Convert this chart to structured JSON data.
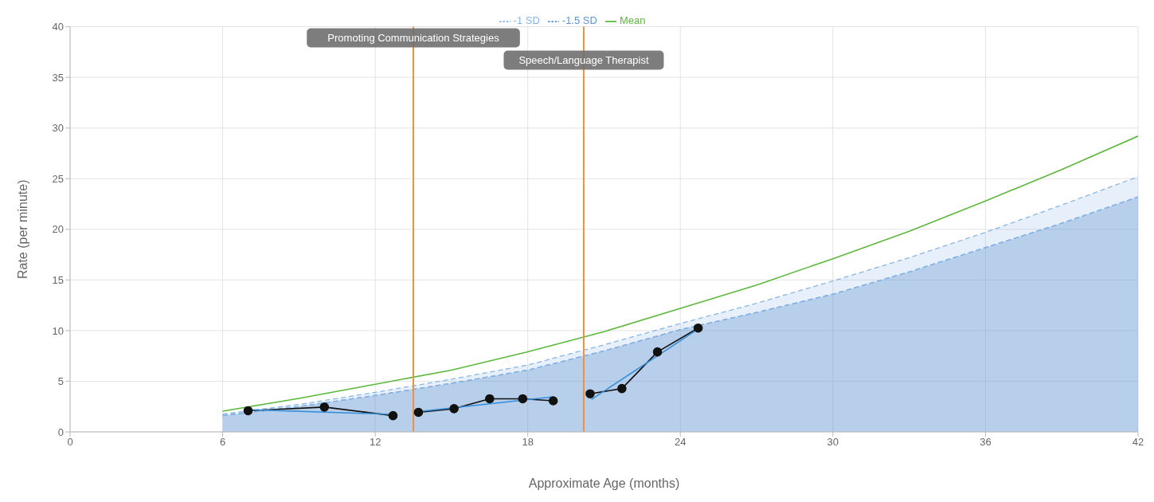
{
  "chart_data": {
    "type": "line",
    "xlabel": "Approximate Age (months)",
    "ylabel": "Rate (per minute)",
    "xlim": [
      0,
      42
    ],
    "xticks": [
      0,
      6,
      12,
      18,
      24,
      30,
      36,
      42
    ],
    "ylim": [
      0,
      40
    ],
    "yticks": [
      0,
      5,
      10,
      15,
      20,
      25,
      30,
      35,
      40
    ],
    "grid": true,
    "legend": "top",
    "series": [
      {
        "name": "-1.5 SD",
        "type": "area",
        "color": "#5f95d0",
        "line_style": "dashed",
        "marker": "none",
        "x": [
          6,
          9,
          12,
          15,
          18,
          21,
          24,
          27,
          30,
          33,
          36,
          39,
          42
        ],
        "values": [
          1.6,
          2.5,
          3.6,
          4.8,
          6.1,
          8.0,
          10.1,
          11.8,
          13.6,
          15.8,
          18.2,
          20.6,
          23.2
        ]
      },
      {
        "name": "-1 SD",
        "type": "area",
        "color": "#86b6e8",
        "line_style": "dashed",
        "marker": "none",
        "x": [
          6,
          9,
          12,
          15,
          18,
          21,
          24,
          27,
          30,
          33,
          36,
          39,
          42
        ],
        "values": [
          1.75,
          2.7,
          3.9,
          5.2,
          6.6,
          8.6,
          10.7,
          12.7,
          14.9,
          17.2,
          19.7,
          22.4,
          25.2
        ]
      },
      {
        "name": "Mean",
        "color": "#5cb83c",
        "line_style": "solid",
        "marker": "none",
        "x": [
          6,
          9,
          12,
          15,
          18,
          21,
          24,
          27,
          30,
          33,
          36,
          39,
          42
        ],
        "values": [
          2.05,
          3.3,
          4.7,
          6.1,
          7.9,
          9.9,
          12.2,
          14.5,
          17.1,
          19.8,
          22.8,
          25.9,
          29.2
        ]
      },
      {
        "color": "#111111",
        "line_style": "solid",
        "marker": "circle",
        "x": [
          7.0,
          10.0,
          12.7
        ],
        "values": [
          2.09,
          2.45,
          1.6
        ]
      },
      {
        "color": "#111111",
        "line_style": "solid",
        "marker": "circle",
        "x": [
          13.7,
          15.1,
          16.5,
          17.8,
          19.0
        ],
        "values": [
          1.93,
          2.29,
          3.27,
          3.27,
          3.07
        ]
      },
      {
        "color": "#111111",
        "line_style": "solid",
        "marker": "circle",
        "x": [
          20.45,
          21.7,
          23.1,
          24.7
        ],
        "values": [
          3.76,
          4.28,
          7.9,
          10.25
        ]
      },
      {
        "color": "#3a8fd9",
        "line_style": "solid",
        "marker": "none",
        "x": [
          7.0,
          12.7
        ],
        "values": [
          2.19,
          1.73
        ]
      },
      {
        "color": "#3a8fd9",
        "line_style": "solid",
        "marker": "none",
        "x": [
          13.7,
          19.0
        ],
        "values": [
          2.0,
          3.46
        ]
      },
      {
        "color": "#3a8fd9",
        "line_style": "solid",
        "marker": "none",
        "x": [
          20.5,
          24.7
        ],
        "values": [
          3.2,
          10.16
        ]
      }
    ],
    "ref_lines": [
      {
        "axis": "x",
        "value": 13.5,
        "label": "Promoting Communication Strategies",
        "color": "#f0903a"
      },
      {
        "axis": "x",
        "value": 20.2,
        "label": "Speech/Language Therapist",
        "color": "#f0903a"
      }
    ]
  }
}
